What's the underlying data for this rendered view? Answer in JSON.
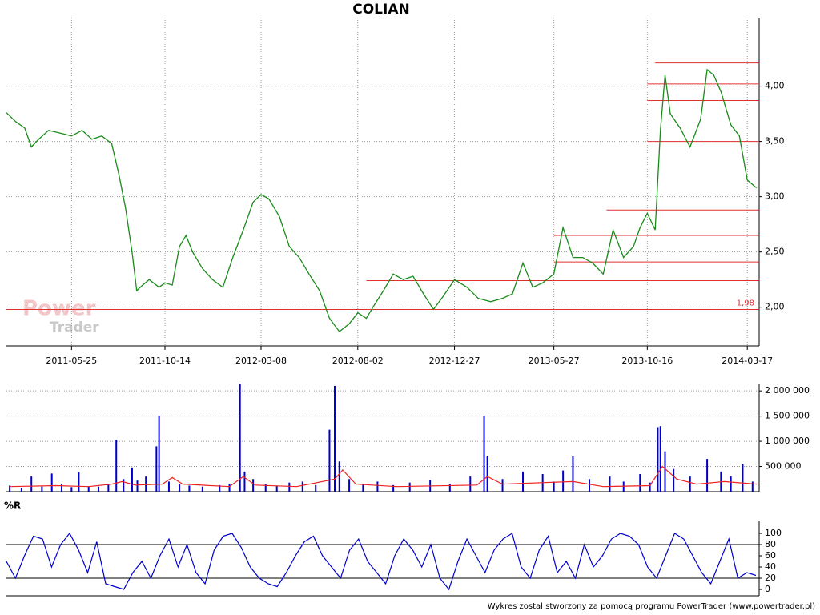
{
  "chart_data": [
    {
      "type": "line",
      "title": "COLIAN",
      "color": "#1a8a1a",
      "watermark": {
        "line1": "Power",
        "line2": "Trader"
      },
      "x": [
        "2011-02-15",
        "2011-03-01",
        "2011-03-15",
        "2011-03-25",
        "2011-04-05",
        "2011-04-20",
        "2011-05-05",
        "2011-05-25",
        "2011-06-10",
        "2011-06-25",
        "2011-07-10",
        "2011-07-25",
        "2011-08-05",
        "2011-08-15",
        "2011-08-25",
        "2011-09-01",
        "2011-09-10",
        "2011-09-20",
        "2011-10-05",
        "2011-10-14",
        "2011-10-25",
        "2011-11-05",
        "2011-11-15",
        "2011-11-25",
        "2011-12-10",
        "2011-12-25",
        "2012-01-10",
        "2012-01-25",
        "2012-02-10",
        "2012-02-25",
        "2012-03-08",
        "2012-03-20",
        "2012-04-05",
        "2012-04-20",
        "2012-05-05",
        "2012-05-20",
        "2012-06-05",
        "2012-06-20",
        "2012-07-05",
        "2012-07-20",
        "2012-08-02",
        "2012-08-15",
        "2012-08-25",
        "2012-09-10",
        "2012-09-25",
        "2012-10-10",
        "2012-10-25",
        "2012-11-10",
        "2012-11-25",
        "2012-12-10",
        "2012-12-27",
        "2013-01-15",
        "2013-02-01",
        "2013-02-20",
        "2013-03-10",
        "2013-03-25",
        "2013-04-10",
        "2013-04-25",
        "2013-05-10",
        "2013-05-27",
        "2013-06-10",
        "2013-06-25",
        "2013-07-10",
        "2013-07-25",
        "2013-08-10",
        "2013-08-25",
        "2013-09-10",
        "2013-09-25",
        "2013-10-05",
        "2013-10-16",
        "2013-10-28",
        "2013-11-05",
        "2013-11-12",
        "2013-11-20",
        "2013-12-05",
        "2013-12-20",
        "2014-01-05",
        "2014-01-15",
        "2014-01-25",
        "2014-02-05",
        "2014-02-20",
        "2014-03-05",
        "2014-03-17",
        "2014-03-31"
      ],
      "values": [
        3.76,
        3.68,
        3.62,
        3.45,
        3.52,
        3.6,
        3.58,
        3.55,
        3.6,
        3.52,
        3.55,
        3.48,
        3.2,
        2.9,
        2.5,
        2.15,
        2.2,
        2.25,
        2.18,
        2.22,
        2.2,
        2.55,
        2.65,
        2.5,
        2.35,
        2.25,
        2.18,
        2.45,
        2.7,
        2.95,
        3.02,
        2.98,
        2.82,
        2.55,
        2.45,
        2.3,
        2.15,
        1.9,
        1.78,
        1.85,
        1.95,
        1.9,
        2.0,
        2.15,
        2.3,
        2.25,
        2.28,
        2.12,
        1.98,
        2.1,
        2.25,
        2.18,
        2.08,
        2.05,
        2.08,
        2.12,
        2.4,
        2.18,
        2.22,
        2.3,
        2.72,
        2.45,
        2.45,
        2.4,
        2.3,
        2.7,
        2.45,
        2.55,
        2.72,
        2.85,
        2.7,
        3.6,
        4.1,
        3.75,
        3.62,
        3.45,
        3.7,
        4.15,
        4.1,
        3.95,
        3.65,
        3.55,
        3.15,
        3.08
      ],
      "xlim": [
        "2011-02-15",
        "2014-04-04"
      ],
      "xticks": [
        "2011-05-25",
        "2011-10-14",
        "2012-03-08",
        "2012-08-02",
        "2012-12-27",
        "2013-05-27",
        "2013-10-16",
        "2014-03-17"
      ],
      "ylim": [
        1.65,
        4.62
      ],
      "yticks": [
        {
          "value": 2.0,
          "label": "2,00"
        },
        {
          "value": 2.5,
          "label": "2,50"
        },
        {
          "value": 3.0,
          "label": "3,00"
        },
        {
          "value": 3.5,
          "label": "3,50"
        },
        {
          "value": 4.0,
          "label": "4,00"
        }
      ],
      "grid": true,
      "levels_color": "#e03030",
      "levels": [
        {
          "value": 1.98,
          "start": "2011-02-15",
          "label": "1,98"
        },
        {
          "value": 2.24,
          "start": "2012-08-15"
        },
        {
          "value": 2.41,
          "start": "2013-05-27"
        },
        {
          "value": 2.65,
          "start": "2013-05-27"
        },
        {
          "value": 2.88,
          "start": "2013-08-15"
        },
        {
          "value": 3.5,
          "start": "2013-10-16"
        },
        {
          "value": 3.87,
          "start": "2013-10-16"
        },
        {
          "value": 4.02,
          "start": "2013-10-16"
        },
        {
          "value": 4.21,
          "start": "2013-10-28"
        }
      ]
    },
    {
      "type": "bar",
      "color": "#0000cc",
      "x": [
        "2011-02-20",
        "2011-03-10",
        "2011-03-25",
        "2011-04-10",
        "2011-04-25",
        "2011-05-10",
        "2011-05-25",
        "2011-06-05",
        "2011-06-20",
        "2011-07-05",
        "2011-07-20",
        "2011-08-01",
        "2011-08-12",
        "2011-08-25",
        "2011-09-02",
        "2011-09-15",
        "2011-10-01",
        "2011-10-05",
        "2011-10-20",
        "2011-11-05",
        "2011-11-20",
        "2011-12-10",
        "2012-01-05",
        "2012-01-20",
        "2012-02-05",
        "2012-02-12",
        "2012-02-25",
        "2012-03-15",
        "2012-04-01",
        "2012-04-20",
        "2012-05-10",
        "2012-05-30",
        "2012-06-20",
        "2012-06-28",
        "2012-07-05",
        "2012-07-20",
        "2012-08-10",
        "2012-09-01",
        "2012-09-25",
        "2012-10-20",
        "2012-11-20",
        "2012-12-20",
        "2013-01-20",
        "2013-02-10",
        "2013-02-15",
        "2013-03-10",
        "2013-04-10",
        "2013-05-10",
        "2013-05-27",
        "2013-06-10",
        "2013-06-25",
        "2013-07-20",
        "2013-08-20",
        "2013-09-10",
        "2013-10-05",
        "2013-10-20",
        "2013-11-01",
        "2013-11-05",
        "2013-11-12",
        "2013-11-25",
        "2013-12-20",
        "2014-01-15",
        "2014-02-05",
        "2014-02-20",
        "2014-03-10",
        "2014-03-25"
      ],
      "values": [
        120000,
        80000,
        300000,
        100000,
        360000,
        150000,
        90000,
        380000,
        110000,
        100000,
        150000,
        1030000,
        250000,
        480000,
        220000,
        300000,
        900000,
        1500000,
        200000,
        150000,
        120000,
        100000,
        130000,
        150000,
        2140000,
        400000,
        250000,
        150000,
        120000,
        180000,
        200000,
        130000,
        1230000,
        2100000,
        600000,
        250000,
        150000,
        200000,
        130000,
        180000,
        230000,
        150000,
        300000,
        1500000,
        700000,
        250000,
        400000,
        350000,
        200000,
        420000,
        700000,
        250000,
        300000,
        200000,
        350000,
        180000,
        1280000,
        1300000,
        800000,
        450000,
        300000,
        650000,
        400000,
        300000,
        550000,
        200000
      ],
      "moving_average": {
        "color": "#ee2222",
        "x": [
          "2011-02-20",
          "2011-05-01",
          "2011-06-20",
          "2011-07-25",
          "2011-08-10",
          "2011-08-30",
          "2011-10-10",
          "2011-10-25",
          "2011-11-10",
          "2012-01-20",
          "2012-02-10",
          "2012-02-28",
          "2012-05-01",
          "2012-06-28",
          "2012-07-10",
          "2012-07-30",
          "2012-09-30",
          "2013-01-30",
          "2013-02-15",
          "2013-03-10",
          "2013-06-25",
          "2013-08-10",
          "2013-10-20",
          "2013-11-08",
          "2013-11-30",
          "2013-12-30",
          "2014-02-10",
          "2014-03-31"
        ],
        "values": [
          100000,
          120000,
          100000,
          150000,
          200000,
          130000,
          150000,
          280000,
          150000,
          100000,
          300000,
          130000,
          100000,
          250000,
          430000,
          150000,
          100000,
          130000,
          300000,
          150000,
          200000,
          100000,
          120000,
          500000,
          250000,
          150000,
          200000,
          150000
        ]
      },
      "xlim": [
        "2011-02-15",
        "2014-04-04"
      ],
      "ylim": [
        0,
        2130000
      ],
      "yticks": [
        {
          "value": 500000,
          "label": "500 000"
        },
        {
          "value": 1000000,
          "label": "1 000 000"
        },
        {
          "value": 1500000,
          "label": "1 500 000"
        },
        {
          "value": 2000000,
          "label": "2 000 000"
        }
      ],
      "grid": true
    },
    {
      "type": "line",
      "title": "%R",
      "color": "#0000cc",
      "values": [
        50,
        20,
        60,
        95,
        90,
        40,
        80,
        100,
        70,
        30,
        85,
        10,
        5,
        0,
        30,
        50,
        20,
        60,
        90,
        40,
        80,
        30,
        10,
        70,
        95,
        100,
        75,
        40,
        20,
        10,
        5,
        30,
        60,
        85,
        95,
        60,
        40,
        20,
        70,
        90,
        50,
        30,
        10,
        60,
        90,
        70,
        40,
        80,
        20,
        0,
        50,
        90,
        60,
        30,
        70,
        90,
        100,
        40,
        20,
        70,
        95,
        30,
        50,
        20,
        80,
        40,
        60,
        90,
        100,
        95,
        80,
        40,
        20,
        60,
        100,
        90,
        60,
        30,
        10,
        50,
        90,
        20,
        30,
        25
      ],
      "ylim": [
        -11.4,
        122.9
      ],
      "yticks": [
        0,
        20,
        40,
        60,
        80,
        100
      ],
      "reference_lines": [
        20,
        80
      ],
      "grid": false
    },
    {
      "type": "footer",
      "text": "Wykres został stworzony za pomocą programu PowerTrader (www.powertrader.pl)"
    }
  ]
}
